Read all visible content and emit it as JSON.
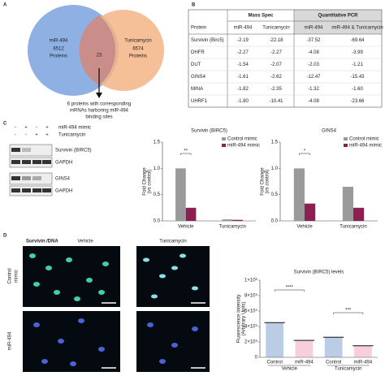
{
  "panel_a": {
    "label": "A",
    "left": {
      "name": "miR-494",
      "count": "6512",
      "unit": "Proteins"
    },
    "right": {
      "name": "Tunicamycin",
      "count": "6574",
      "unit": "Proteins"
    },
    "overlap": "23",
    "note": [
      "6 proteins with corresponding",
      "mRNAs harboring miR-494",
      "binding sites"
    ]
  },
  "panel_b": {
    "label": "B",
    "group_headers": [
      "Mass Spec",
      "Quantitative PCR"
    ],
    "columns": [
      "Protein",
      "miR-494",
      "Tunicamycin",
      "miR-494",
      "miR-494 & Tunicamycin"
    ],
    "rows": [
      [
        "Survivin (Birc5)",
        "-2.19",
        "-22.18",
        "-37.52",
        "-69.64"
      ],
      [
        "DHFR",
        "-2.27",
        "-2.27",
        "-4.08",
        "-3.99"
      ],
      [
        "DUT",
        "-1.54",
        "-2.07",
        "-2.03",
        "-1.21"
      ],
      [
        "GINS4",
        "-1.61",
        "-2.62",
        "-12.47",
        "-15.43"
      ],
      [
        "MINA",
        "-1.82",
        "-2.35",
        "-1.32",
        "-1.60"
      ],
      [
        "UHRF1",
        "-1.80",
        "-10.41",
        "-4.08",
        "-23.66"
      ]
    ]
  },
  "panel_c": {
    "label": "C",
    "treatments": [
      {
        "name": "miR-494 mimic",
        "signs": [
          "-",
          "+",
          "-",
          "+"
        ]
      },
      {
        "name": "Tunicamycin",
        "signs": [
          "-",
          "-",
          "+",
          "+"
        ]
      }
    ],
    "blots": [
      "Survivin (BIRC5)",
      "GAPDH",
      "GINS4",
      "GAPDH"
    ],
    "charts": [
      {
        "type": "bar",
        "title": "Survivin (BIRC5)",
        "y_label": [
          "Fold Change",
          "(vs control)"
        ],
        "categories": [
          "Vehicle",
          "Tunicamycin"
        ],
        "series": [
          {
            "name": "Control mimic",
            "color": "#9a9a9a",
            "values": [
              1.0,
              0.03
            ]
          },
          {
            "name": "miR-494 mimic",
            "color": "#8e1f52",
            "values": [
              0.25,
              0.02
            ]
          }
        ],
        "ylim": [
          0,
          1.5
        ],
        "yticks": [
          {
            "value": 0,
            "label": "0.0"
          },
          {
            "value": 0.5,
            "label": "0.5"
          },
          {
            "value": 1,
            "label": "1.0"
          },
          {
            "value": 1.5,
            "label": "1.5"
          }
        ],
        "significance": "**"
      },
      {
        "type": "bar",
        "title": "GINS4",
        "y_label": [
          "Fold Change",
          "(vs control)"
        ],
        "categories": [
          "Vehicle",
          "Tunicamycin"
        ],
        "series": [
          {
            "name": "Control mimic",
            "color": "#9a9a9a",
            "values": [
              1.0,
              0.65
            ]
          },
          {
            "name": "miR-494 mimic",
            "color": "#8e1f52",
            "values": [
              0.33,
              0.25
            ]
          }
        ],
        "ylim": [
          0,
          1.5
        ],
        "yticks": [
          {
            "value": 0,
            "label": "0.0"
          },
          {
            "value": 0.5,
            "label": "0.5"
          },
          {
            "value": 1,
            "label": "1.0"
          },
          {
            "value": 1.5,
            "label": "1.5"
          }
        ],
        "significance": "*"
      }
    ]
  },
  "panel_d": {
    "label": "D",
    "stain": [
      "Survivin",
      "/DNA"
    ],
    "columns": [
      "Vehicle",
      "Tunicamycin"
    ],
    "rows": [
      [
        "Control",
        "mimic"
      ],
      [
        "miR-494"
      ]
    ],
    "chart": {
      "type": "dot",
      "title": "Survivin (BIRC5) levels",
      "y_label": [
        "Fluorescence Intensity",
        "(Arbitrary Units)"
      ],
      "categories": [
        "Control",
        "miR-494",
        "Control",
        "miR-494"
      ],
      "groups": [
        "Vehicle",
        "Tunicamycin"
      ],
      "colors": [
        "#3d6fb5",
        "#e5739a",
        "#3d6fb5",
        "#e5739a"
      ],
      "values": [
        450000,
        220000,
        260000,
        150000
      ],
      "ylim": [
        0,
        1000000
      ],
      "yticks": [
        {
          "value": 0,
          "label": "0"
        },
        {
          "value": 200000,
          "label": "2×10⁵"
        },
        {
          "value": 400000,
          "label": "4×10⁵"
        },
        {
          "value": 600000,
          "label": "6×10⁵"
        },
        {
          "value": 800000,
          "label": "8×10⁵"
        },
        {
          "value": 1000000,
          "label": "1×10⁶"
        }
      ],
      "significance": [
        "****",
        "***"
      ]
    }
  }
}
